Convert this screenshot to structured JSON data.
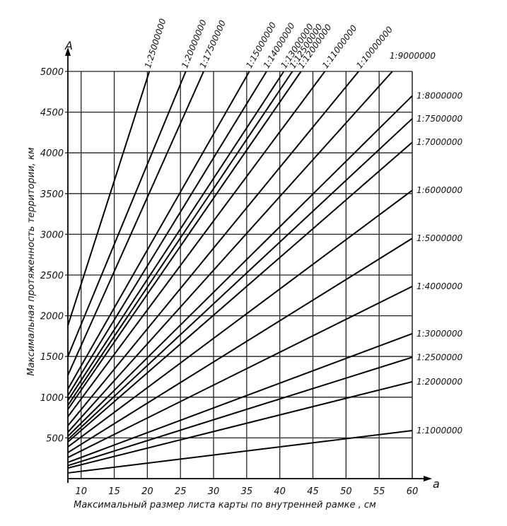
{
  "chart_data": {
    "type": "line",
    "title": "",
    "xlabel": "Максимальный размер листа карты по внутренней рамке , см",
    "ylabel": "Максимальная протяженность территории, км",
    "x_axis_letter": "a",
    "y_axis_letter": "A",
    "xlim": [
      8,
      60
    ],
    "ylim": [
      0,
      5000
    ],
    "x_ticks": [
      10,
      15,
      20,
      25,
      30,
      35,
      40,
      45,
      50,
      55,
      60
    ],
    "y_ticks": [
      500,
      1000,
      1500,
      2000,
      2500,
      3000,
      3500,
      4000,
      4500,
      5000
    ],
    "grid": true,
    "x_tick_labels": [
      "10",
      "15",
      "20",
      "25",
      "30",
      "35",
      "40",
      "45",
      "50",
      "55",
      "60"
    ],
    "y_tick_labels": [
      "500",
      "1000",
      "1500",
      "2000",
      "2500",
      "3000",
      "3500",
      "4000",
      "4500",
      "5000"
    ],
    "series": [
      {
        "name": "1:25000000",
        "x": [
          8,
          20.3
        ],
        "y": [
          1880,
          5000
        ]
      },
      {
        "name": "1:20000000",
        "x": [
          8,
          25.8
        ],
        "y": [
          1500,
          5000
        ]
      },
      {
        "name": "1:17500000",
        "x": [
          8,
          28.5
        ],
        "y": [
          1270,
          5000
        ]
      },
      {
        "name": "1:15000000",
        "x": [
          8,
          35.4
        ],
        "y": [
          1100,
          5000
        ]
      },
      {
        "name": "1:14000000",
        "x": [
          8,
          38.0
        ],
        "y": [
          1020,
          5000
        ]
      },
      {
        "name": "1:13000000",
        "x": [
          8,
          40.6
        ],
        "y": [
          960,
          5000
        ]
      },
      {
        "name": "1:12500000",
        "x": [
          8,
          41.9
        ],
        "y": [
          900,
          5000
        ]
      },
      {
        "name": "1:12000000",
        "x": [
          8,
          43.2
        ],
        "y": [
          850,
          5000
        ]
      },
      {
        "name": "1:11000000",
        "x": [
          8,
          46.8
        ],
        "y": [
          760,
          5000
        ]
      },
      {
        "name": "1:10000000",
        "x": [
          8,
          51.9
        ],
        "y": [
          650,
          5000
        ]
      },
      {
        "name": "1:9000000",
        "x": [
          8,
          57.0
        ],
        "y": [
          570,
          5000
        ]
      },
      {
        "name": "1:8000000",
        "x": [
          8,
          60
        ],
        "y": [
          520,
          4700
        ]
      },
      {
        "name": "1:7500000",
        "x": [
          8,
          60
        ],
        "y": [
          480,
          4420
        ]
      },
      {
        "name": "1:7000000",
        "x": [
          8,
          60
        ],
        "y": [
          450,
          4130
        ]
      },
      {
        "name": "1:6000000",
        "x": [
          8,
          60
        ],
        "y": [
          390,
          3540
        ]
      },
      {
        "name": "1:5000000",
        "x": [
          8,
          60
        ],
        "y": [
          320,
          2950
        ]
      },
      {
        "name": "1:4000000",
        "x": [
          8,
          60
        ],
        "y": [
          260,
          2360
        ]
      },
      {
        "name": "1:3000000",
        "x": [
          8,
          60
        ],
        "y": [
          200,
          1780
        ]
      },
      {
        "name": "1:2500000",
        "x": [
          8,
          60
        ],
        "y": [
          160,
          1490
        ]
      },
      {
        "name": "1:2000000",
        "x": [
          8,
          60
        ],
        "y": [
          130,
          1190
        ]
      },
      {
        "name": "1:1000000",
        "x": [
          8,
          60
        ],
        "y": [
          70,
          590
        ]
      }
    ]
  }
}
